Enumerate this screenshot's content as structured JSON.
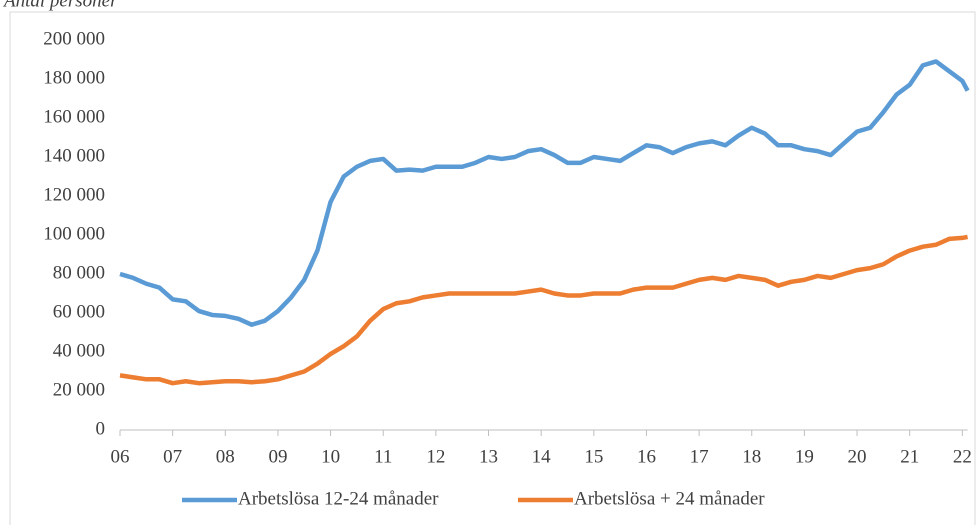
{
  "chart_data": {
    "type": "line",
    "title": "Antal personer",
    "x": [
      2006,
      2006.25,
      2006.5,
      2006.75,
      2007,
      2007.25,
      2007.5,
      2007.75,
      2008,
      2008.25,
      2008.5,
      2008.75,
      2009,
      2009.25,
      2009.5,
      2009.75,
      2010,
      2010.25,
      2010.5,
      2010.75,
      2011,
      2011.25,
      2011.5,
      2011.75,
      2012,
      2012.25,
      2012.5,
      2012.75,
      2013,
      2013.25,
      2013.5,
      2013.75,
      2014,
      2014.25,
      2014.5,
      2014.75,
      2015,
      2015.25,
      2015.5,
      2015.75,
      2016,
      2016.25,
      2016.5,
      2016.75,
      2017,
      2017.25,
      2017.5,
      2017.75,
      2018,
      2018.25,
      2018.5,
      2018.75,
      2019,
      2019.25,
      2019.5,
      2019.75,
      2020,
      2020.25,
      2020.5,
      2020.75,
      2021,
      2021.25,
      2021.5,
      2021.75,
      2022,
      2022.1
    ],
    "series": [
      {
        "name": "Arbetslösa 12-24 månader",
        "color": "#5b9bd5",
        "values": [
          80000,
          78000,
          75000,
          73000,
          67000,
          66000,
          61000,
          59000,
          58500,
          57000,
          54000,
          56000,
          61000,
          68000,
          77000,
          92000,
          117000,
          130000,
          135000,
          138000,
          139000,
          133000,
          133500,
          133000,
          135000,
          135000,
          135000,
          137000,
          140000,
          139000,
          140000,
          143000,
          144000,
          141000,
          137000,
          137000,
          140000,
          139000,
          138000,
          142000,
          146000,
          145000,
          142000,
          145000,
          147000,
          148000,
          146000,
          151000,
          155000,
          152000,
          146000,
          146000,
          144000,
          143000,
          141000,
          147000,
          153000,
          155000,
          163000,
          172000,
          177000,
          187000,
          189000,
          184000,
          179000,
          174000
        ]
      },
      {
        "name": "Arbetslösa + 24 månader",
        "color": "#ed7d31",
        "values": [
          28000,
          27000,
          26000,
          26000,
          24000,
          25000,
          24000,
          24500,
          25000,
          25000,
          24500,
          25000,
          26000,
          28000,
          30000,
          34000,
          39000,
          43000,
          48000,
          56000,
          62000,
          65000,
          66000,
          68000,
          69000,
          70000,
          70000,
          70000,
          70000,
          70000,
          70000,
          71000,
          72000,
          70000,
          69000,
          69000,
          70000,
          70000,
          70000,
          72000,
          73000,
          73000,
          73000,
          75000,
          77000,
          78000,
          77000,
          79000,
          78000,
          77000,
          74000,
          76000,
          77000,
          79000,
          78000,
          80000,
          82000,
          83000,
          85000,
          89000,
          92000,
          94000,
          95000,
          98000,
          98500,
          99000
        ]
      }
    ],
    "xlim": [
      2006,
      2022.1
    ],
    "xticks": [
      {
        "value": 2006,
        "label": "06"
      },
      {
        "value": 2007,
        "label": "07"
      },
      {
        "value": 2008,
        "label": "08"
      },
      {
        "value": 2009,
        "label": "09"
      },
      {
        "value": 2010,
        "label": "10"
      },
      {
        "value": 2011,
        "label": "11"
      },
      {
        "value": 2012,
        "label": "12"
      },
      {
        "value": 2013,
        "label": "13"
      },
      {
        "value": 2014,
        "label": "14"
      },
      {
        "value": 2015,
        "label": "15"
      },
      {
        "value": 2016,
        "label": "16"
      },
      {
        "value": 2017,
        "label": "17"
      },
      {
        "value": 2018,
        "label": "18"
      },
      {
        "value": 2019,
        "label": "19"
      },
      {
        "value": 2020,
        "label": "20"
      },
      {
        "value": 2021,
        "label": "21"
      },
      {
        "value": 2022,
        "label": "22"
      }
    ],
    "ylim": [
      0,
      200000
    ],
    "yticks": [
      0,
      {
        "value": 20000,
        "label": "20 000"
      },
      {
        "value": 40000,
        "label": "40 000"
      },
      {
        "value": 60000,
        "label": "60 000"
      },
      {
        "value": 80000,
        "label": "80 000"
      },
      {
        "value": 100000,
        "label": "100 000"
      },
      {
        "value": 120000,
        "label": "120 000"
      },
      {
        "value": 140000,
        "label": "140 000"
      },
      {
        "value": 160000,
        "label": "160 000"
      },
      {
        "value": 180000,
        "label": "180 000"
      },
      {
        "value": 200000,
        "label": "200 000"
      }
    ],
    "grid": false,
    "legend": "bottom"
  }
}
